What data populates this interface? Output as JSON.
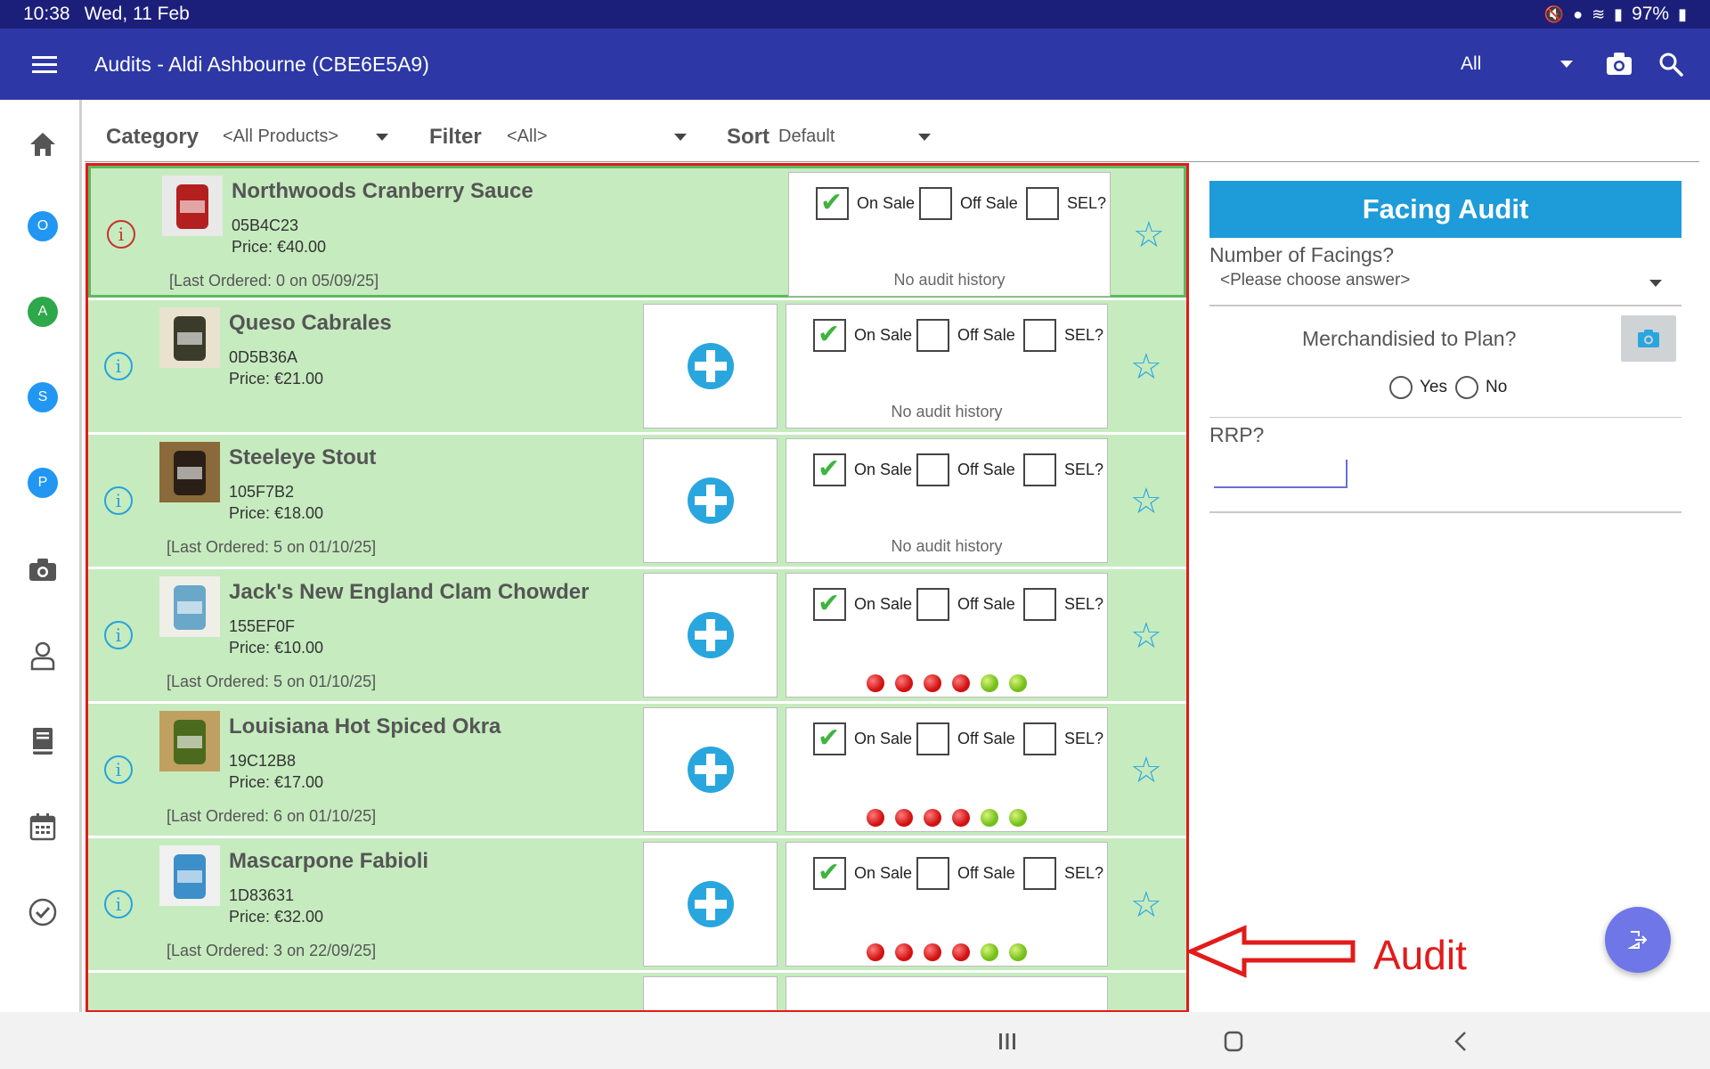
{
  "status": {
    "time": "10:38",
    "date": "Wed, 11 Feb",
    "battery": "97%"
  },
  "appbar": {
    "title": "Audits - Aldi Ashbourne (CBE6E5A9)",
    "scope": "All"
  },
  "rail": {
    "badges": [
      "O",
      "A",
      "S",
      "P"
    ]
  },
  "filters": {
    "category_label": "Category",
    "category_value": "<All Products>",
    "filter_label": "Filter",
    "filter_value": "<All>",
    "sort_label": "Sort",
    "sort_value": "Default"
  },
  "labels": {
    "on_sale": "On Sale",
    "off_sale": "Off Sale",
    "sel": "SEL?",
    "no_history": "No audit history"
  },
  "products": [
    {
      "name": "Northwoods Cranberry Sauce",
      "code": "05B4C23",
      "price": "Price: €40.00",
      "last": "[Last Ordered: 0 on 05/09/25]",
      "on_sale": true,
      "history": null
    },
    {
      "name": "Queso Cabrales",
      "code": "0D5B36A",
      "price": "Price: €21.00",
      "last": "",
      "on_sale": true,
      "history": null
    },
    {
      "name": "Steeleye Stout",
      "code": "105F7B2",
      "price": "Price: €18.00",
      "last": "[Last Ordered: 5 on 01/10/25]",
      "on_sale": true,
      "history": null
    },
    {
      "name": "Jack's New England Clam Chowder",
      "code": "155EF0F",
      "price": "Price: €10.00",
      "last": "[Last Ordered: 5 on 01/10/25]",
      "on_sale": true,
      "history": [
        "red",
        "red",
        "red",
        "red",
        "green",
        "green"
      ]
    },
    {
      "name": "Louisiana Hot Spiced Okra",
      "code": "19C12B8",
      "price": "Price: €17.00",
      "last": "[Last Ordered: 6 on 01/10/25]",
      "on_sale": true,
      "history": [
        "red",
        "red",
        "red",
        "red",
        "green",
        "green"
      ]
    },
    {
      "name": "Mascarpone Fabioli",
      "code": "1D83631",
      "price": "Price: €32.00",
      "last": "[Last Ordered: 3 on 22/09/25]",
      "on_sale": true,
      "history": [
        "red",
        "red",
        "red",
        "red",
        "green",
        "green"
      ]
    }
  ],
  "panel": {
    "title": "Facing Audit",
    "q1": "Number of Facings?",
    "q1_placeholder": "<Please choose answer>",
    "q2": "Merchandisied to Plan?",
    "yes": "Yes",
    "no": "No",
    "q3": "RRP?"
  },
  "annotation": "Audit"
}
